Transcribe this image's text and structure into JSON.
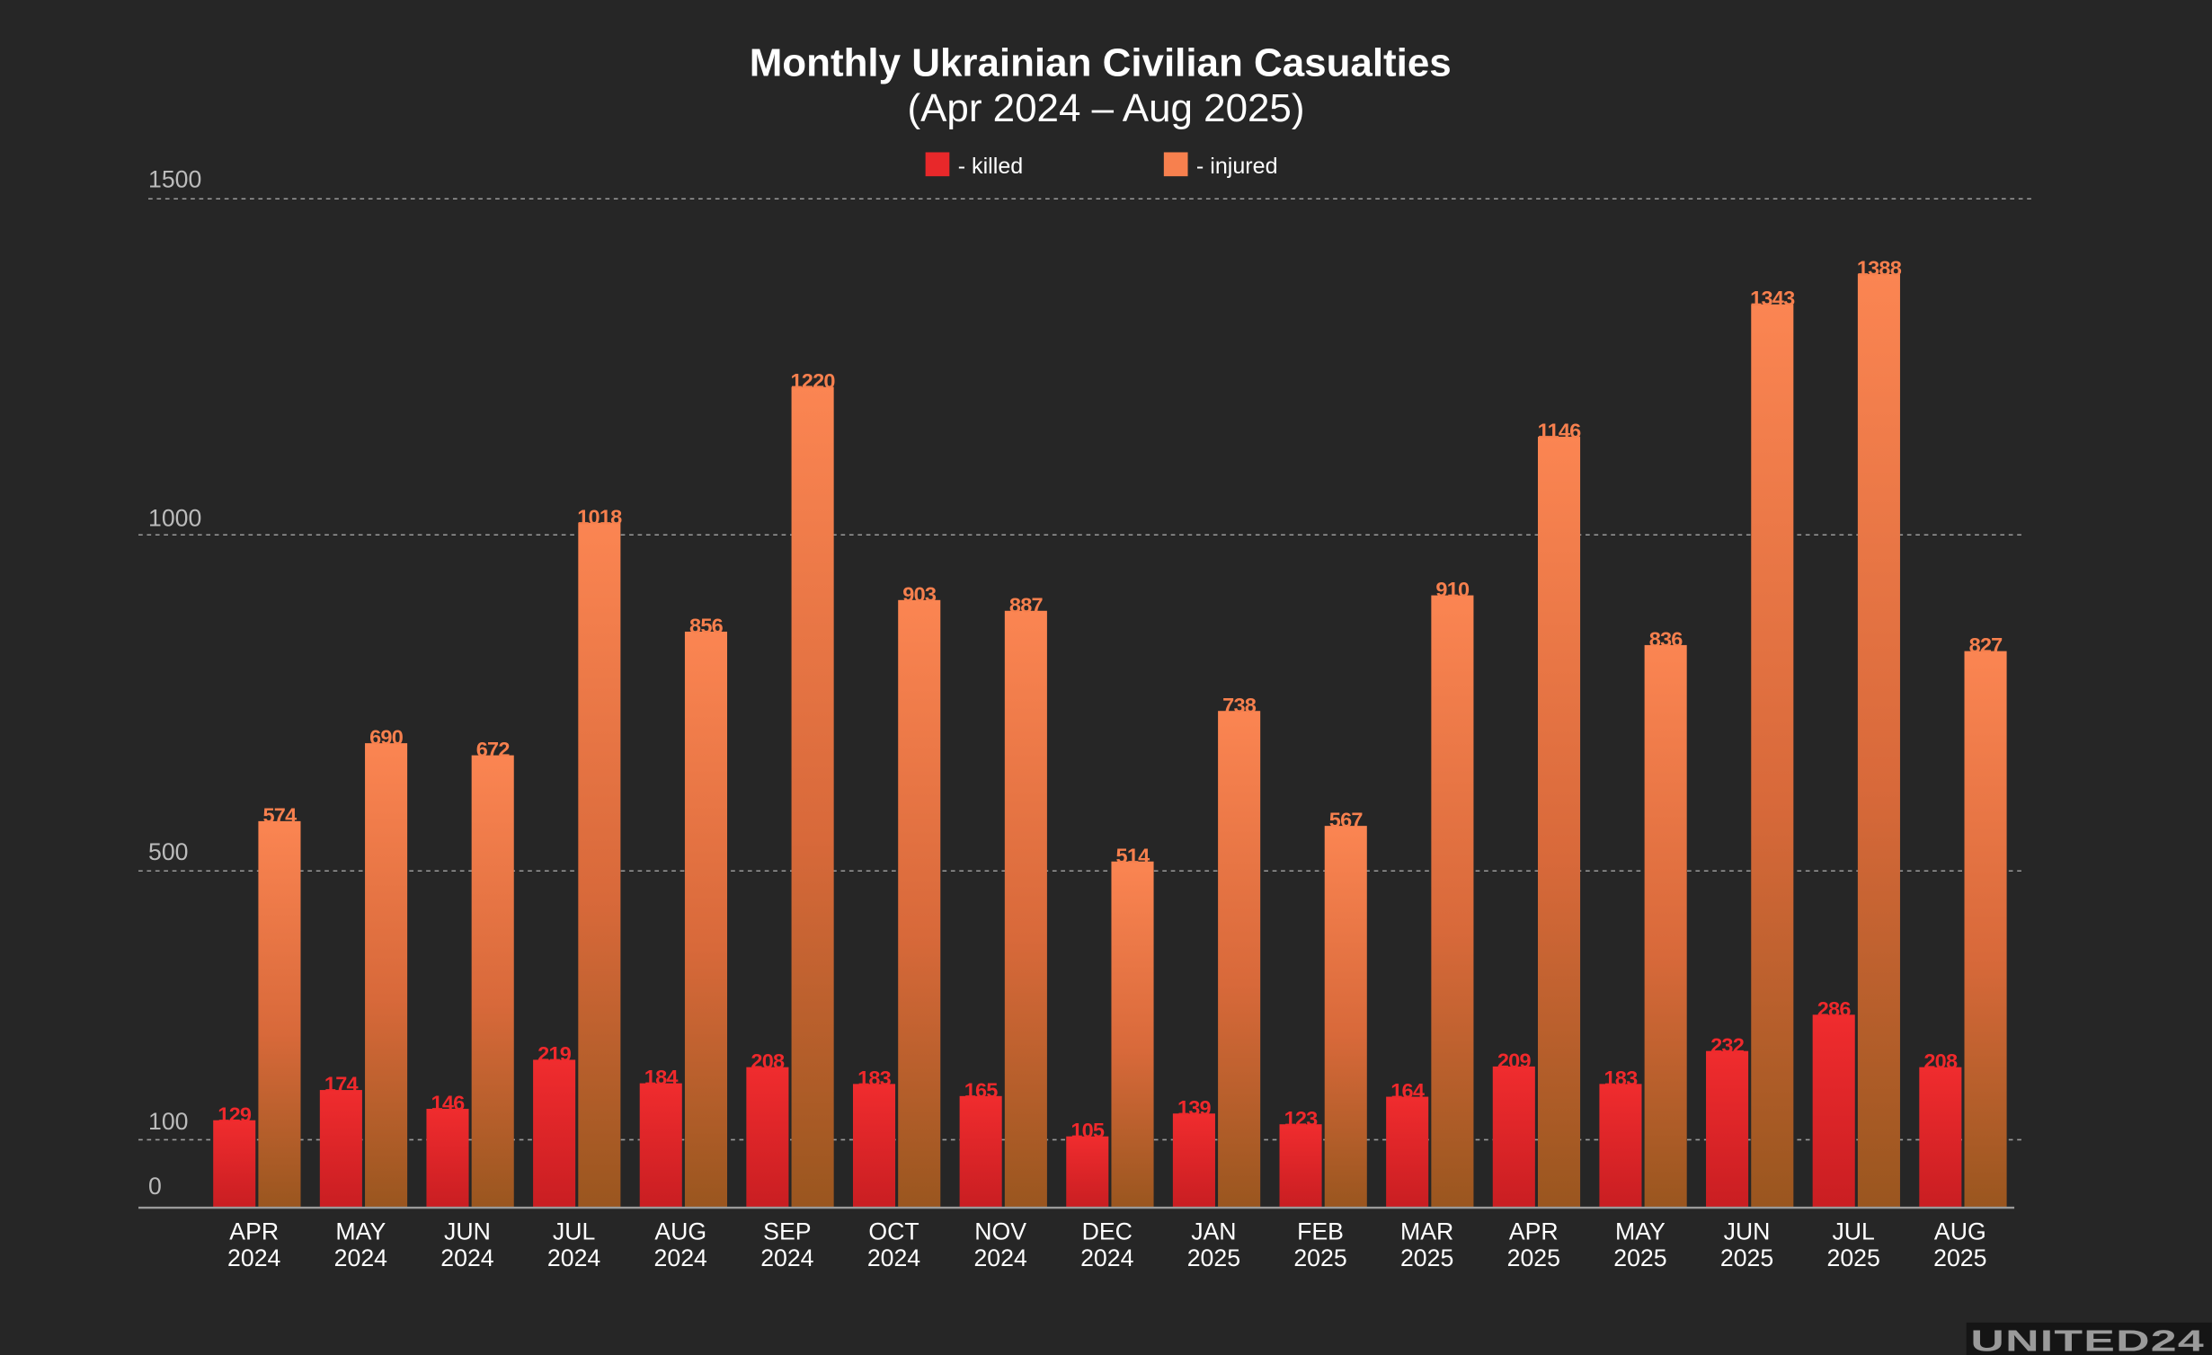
{
  "chart_data": {
    "type": "bar",
    "title": "Monthly Ukrainian Civilian Casualties",
    "subtitle": "(Apr 2024 – Aug 2025)",
    "categories": [
      [
        "APR",
        "2024"
      ],
      [
        "MAY",
        "2024"
      ],
      [
        "JUN",
        "2024"
      ],
      [
        "JUL",
        "2024"
      ],
      [
        "AUG",
        "2024"
      ],
      [
        "SEP",
        "2024"
      ],
      [
        "OCT",
        "2024"
      ],
      [
        "NOV",
        "2024"
      ],
      [
        "DEC",
        "2024"
      ],
      [
        "JAN",
        "2025"
      ],
      [
        "FEB",
        "2025"
      ],
      [
        "MAR",
        "2025"
      ],
      [
        "APR",
        "2025"
      ],
      [
        "MAY",
        "2025"
      ],
      [
        "JUN",
        "2025"
      ],
      [
        "JUL",
        "2025"
      ],
      [
        "AUG",
        "2025"
      ]
    ],
    "series": [
      {
        "name": "killed",
        "legend_label": "- killed",
        "color": "#e8282a",
        "values": [
          129,
          174,
          146,
          219,
          184,
          208,
          183,
          165,
          105,
          139,
          123,
          164,
          209,
          183,
          232,
          286,
          208
        ]
      },
      {
        "name": "injured",
        "legend_label": "- injured",
        "color": "#f7804e",
        "values": [
          574,
          690,
          672,
          1018,
          856,
          1220,
          903,
          887,
          514,
          738,
          567,
          910,
          1146,
          836,
          1343,
          1388,
          827
        ]
      }
    ],
    "yticks": [
      "0",
      "100",
      "500",
      "1000",
      "1500"
    ],
    "ytick_values": [
      0,
      100,
      500,
      1000,
      1500
    ],
    "ylim": [
      0,
      1500
    ],
    "xlabel": "",
    "ylabel": "",
    "grid": true,
    "legend_placement": "top-center",
    "logo": "UNITED24"
  }
}
